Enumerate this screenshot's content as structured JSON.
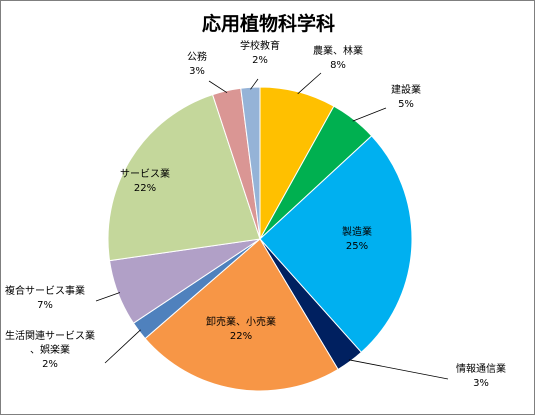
{
  "chart_data": {
    "type": "pie",
    "title": "応用植物科学科",
    "start_angle_deg": 0,
    "direction": "clockwise",
    "slices": [
      {
        "name": "農業、林業",
        "value": 8,
        "label": "8%",
        "color": "#FFC000"
      },
      {
        "name": "建設業",
        "value": 5,
        "label": "5%",
        "color": "#00B050"
      },
      {
        "name": "製造業",
        "value": 25,
        "label": "25%",
        "color": "#00B0F0"
      },
      {
        "name": "情報通信業",
        "value": 3,
        "label": "3%",
        "color": "#002060"
      },
      {
        "name": "卸売業、小売業",
        "value": 22,
        "label": "22%",
        "color": "#F79646"
      },
      {
        "name": "生活関連サービス業、娯楽業",
        "value": 2,
        "label": "2%",
        "color": "#4F81BD"
      },
      {
        "name": "複合サービス事業",
        "value": 7,
        "label": "7%",
        "color": "#B1A0C7"
      },
      {
        "name": "サービス業",
        "value": 22,
        "label": "22%",
        "color": "#C4D79B"
      },
      {
        "name": "公務",
        "value": 3,
        "label": "3%",
        "color": "#DA9694"
      },
      {
        "name": "学校教育",
        "value": 2,
        "label": "2%",
        "color": "#95B3D7"
      }
    ]
  }
}
